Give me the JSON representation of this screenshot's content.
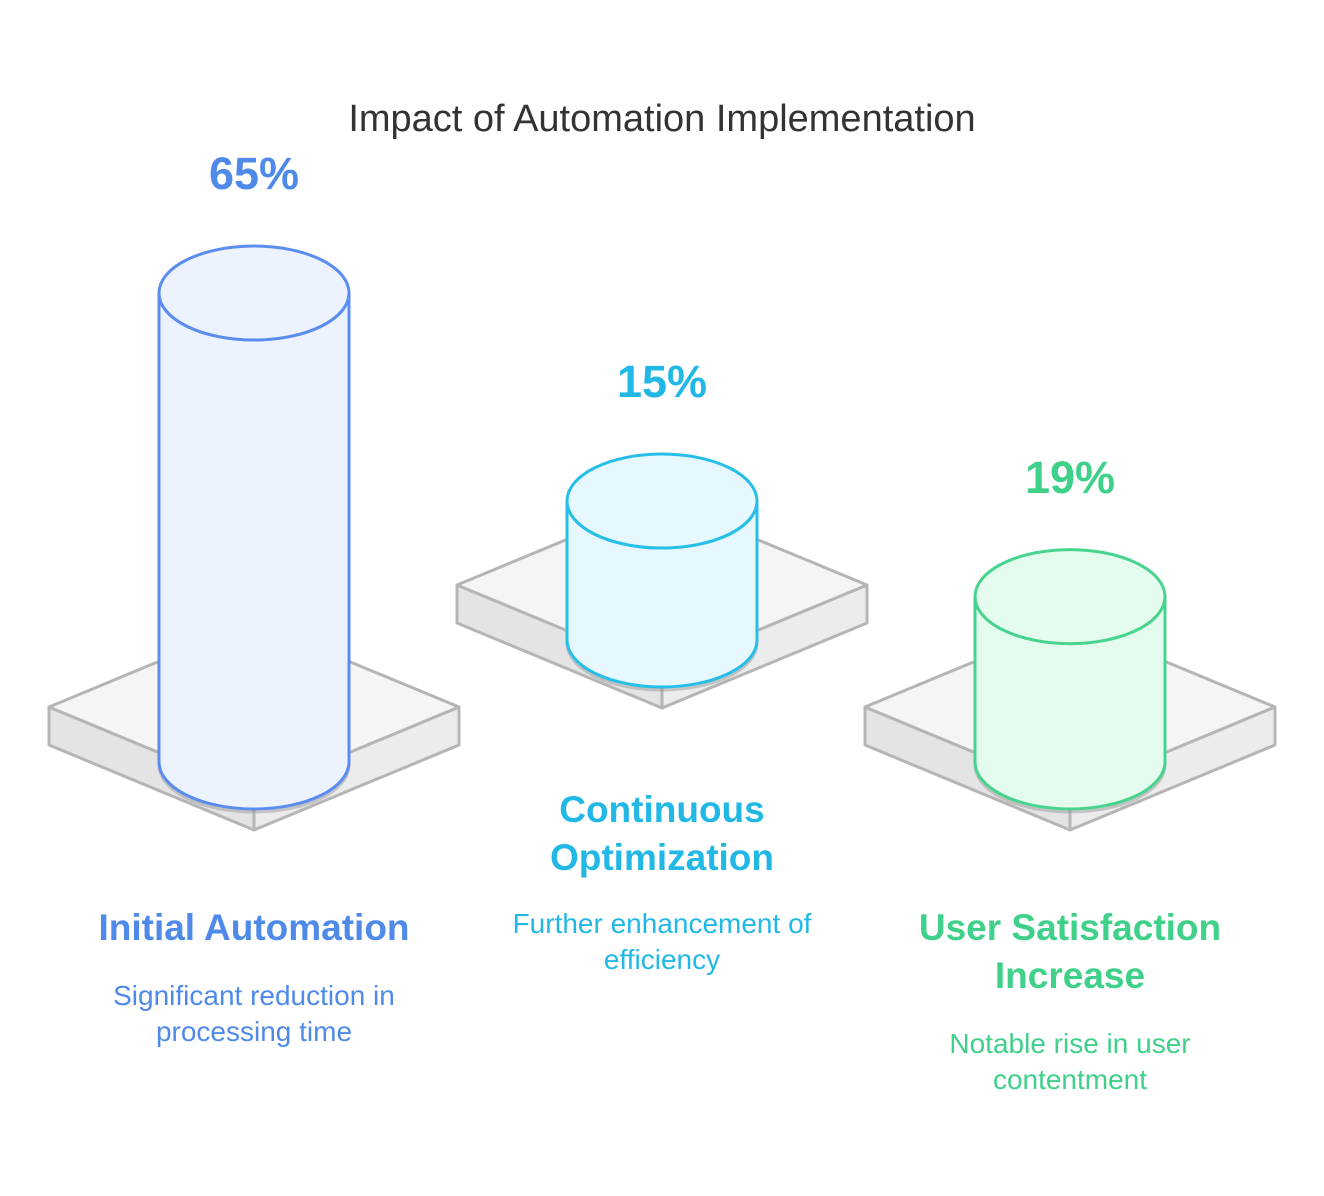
{
  "chart_data": {
    "type": "bar",
    "title": "Impact of Automation Implementation",
    "categories": [
      "Initial Automation",
      "Continuous Optimization",
      "User Satisfaction Increase"
    ],
    "values": [
      65,
      15,
      19
    ],
    "value_labels": [
      "65%",
      "15%",
      "19%"
    ],
    "descriptions": [
      "Significant reduction in processing time",
      "Further enhancement of efficiency",
      "Notable rise in user contentment"
    ],
    "colors": {
      "stroke": [
        "#5b8def",
        "#27bfe8",
        "#48d48f"
      ],
      "fill": [
        "#edf3fe",
        "#e6f8fd",
        "#e3fcee"
      ],
      "text": [
        "#4f8ae8",
        "#22b8e6",
        "#3fd08a"
      ]
    }
  }
}
